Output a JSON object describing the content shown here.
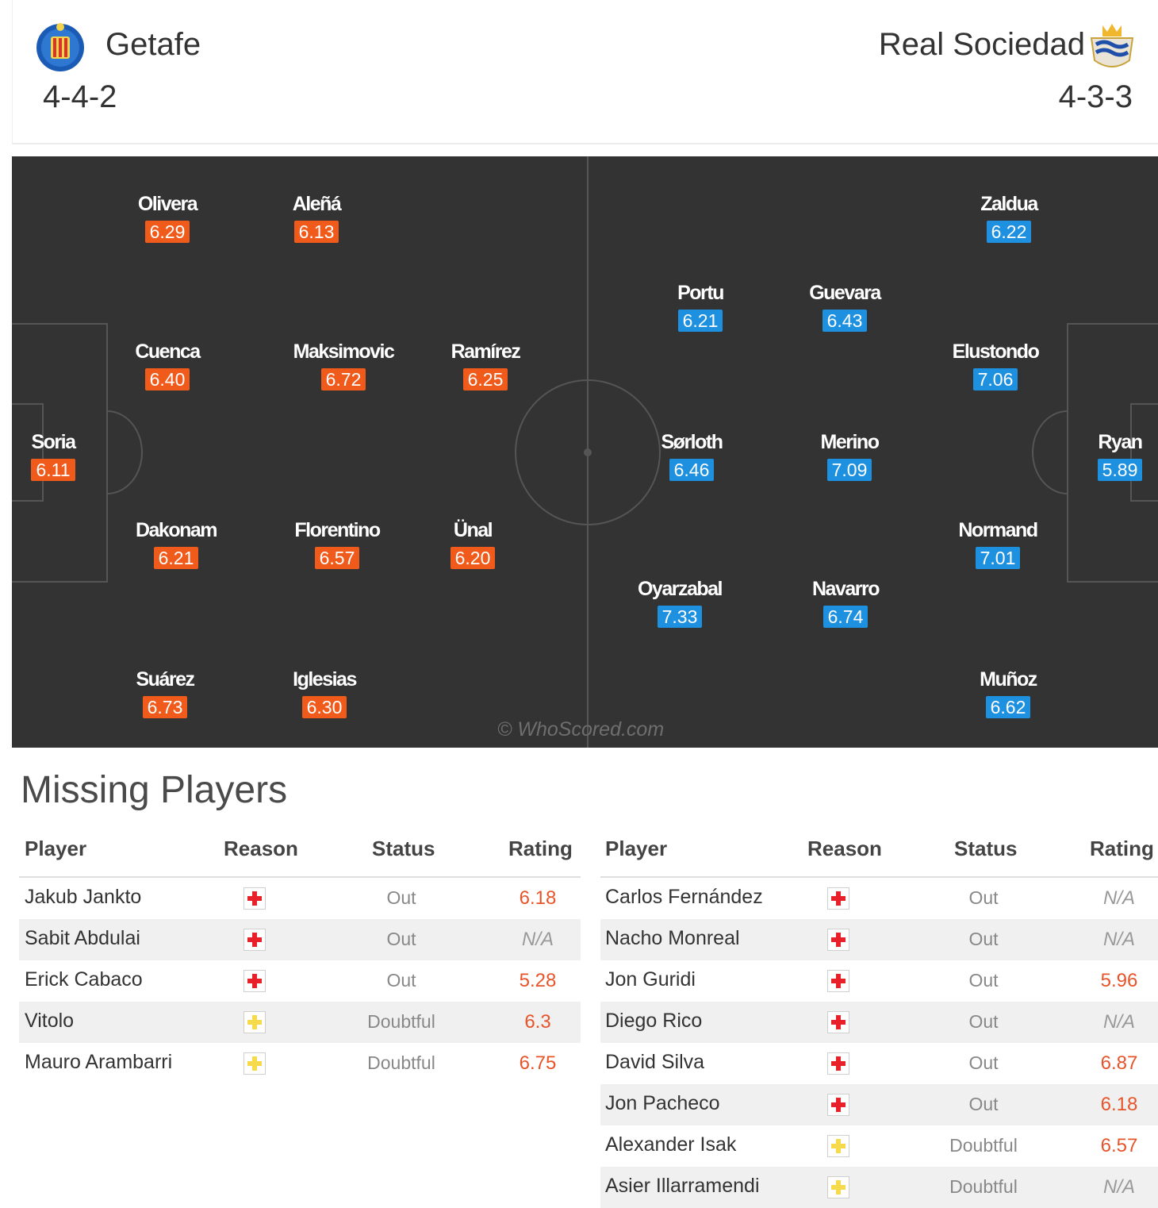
{
  "match": {
    "home": {
      "name": "Getafe",
      "formation": "4-4-2",
      "color": "#f05a1a",
      "logo_icon": "getafe-crest-icon"
    },
    "away": {
      "name": "Real Sociedad",
      "formation": "4-3-3",
      "color": "#1e90e0",
      "logo_icon": "real-sociedad-crest-icon"
    }
  },
  "lineup": {
    "home_players": [
      {
        "name": "Olivera",
        "rating": "6.29"
      },
      {
        "name": "Aleñá",
        "rating": "6.13"
      },
      {
        "name": "Cuenca",
        "rating": "6.40"
      },
      {
        "name": "Maksimovic",
        "rating": "6.72"
      },
      {
        "name": "Ramírez",
        "rating": "6.25"
      },
      {
        "name": "Soria",
        "rating": "6.11"
      },
      {
        "name": "Dakonam",
        "rating": "6.21"
      },
      {
        "name": "Florentino",
        "rating": "6.57"
      },
      {
        "name": "Ünal",
        "rating": "6.20"
      },
      {
        "name": "Suárez",
        "rating": "6.73"
      },
      {
        "name": "Iglesias",
        "rating": "6.30"
      }
    ],
    "away_players": [
      {
        "name": "Zaldua",
        "rating": "6.22"
      },
      {
        "name": "Portu",
        "rating": "6.21"
      },
      {
        "name": "Guevara",
        "rating": "6.43"
      },
      {
        "name": "Elustondo",
        "rating": "7.06"
      },
      {
        "name": "Sørloth",
        "rating": "6.46"
      },
      {
        "name": "Merino",
        "rating": "7.09"
      },
      {
        "name": "Ryan",
        "rating": "5.89"
      },
      {
        "name": "Normand",
        "rating": "7.01"
      },
      {
        "name": "Oyarzabal",
        "rating": "7.33"
      },
      {
        "name": "Navarro",
        "rating": "6.74"
      },
      {
        "name": "Muñoz",
        "rating": "6.62"
      }
    ],
    "watermark": "© WhoScored.com"
  },
  "missing": {
    "title": "Missing Players",
    "headers": {
      "player": "Player",
      "reason": "Reason",
      "status": "Status",
      "rating": "Rating"
    },
    "home": [
      {
        "player": "Jakub Jankto",
        "reason": "injury",
        "status": "Out",
        "rating": "6.18"
      },
      {
        "player": "Sabit Abdulai",
        "reason": "injury",
        "status": "Out",
        "rating": "N/A"
      },
      {
        "player": "Erick Cabaco",
        "reason": "injury",
        "status": "Out",
        "rating": "5.28"
      },
      {
        "player": "Vitolo",
        "reason": "doubtful",
        "status": "Doubtful",
        "rating": "6.3"
      },
      {
        "player": "Mauro Arambarri",
        "reason": "doubtful",
        "status": "Doubtful",
        "rating": "6.75"
      }
    ],
    "away": [
      {
        "player": "Carlos Fernández",
        "reason": "injury",
        "status": "Out",
        "rating": "N/A"
      },
      {
        "player": "Nacho Monreal",
        "reason": "injury",
        "status": "Out",
        "rating": "N/A"
      },
      {
        "player": "Jon Guridi",
        "reason": "injury",
        "status": "Out",
        "rating": "5.96"
      },
      {
        "player": "Diego Rico",
        "reason": "injury",
        "status": "Out",
        "rating": "N/A"
      },
      {
        "player": "David Silva",
        "reason": "injury",
        "status": "Out",
        "rating": "6.87"
      },
      {
        "player": "Jon Pacheco",
        "reason": "injury",
        "status": "Out",
        "rating": "6.18"
      },
      {
        "player": "Alexander Isak",
        "reason": "doubtful",
        "status": "Doubtful",
        "rating": "6.57"
      },
      {
        "player": "Asier Illarramendi",
        "reason": "doubtful",
        "status": "Doubtful",
        "rating": "N/A"
      }
    ],
    "icon_colors": {
      "injury": "#e8202a",
      "doubtful": "#f7d94c"
    }
  }
}
